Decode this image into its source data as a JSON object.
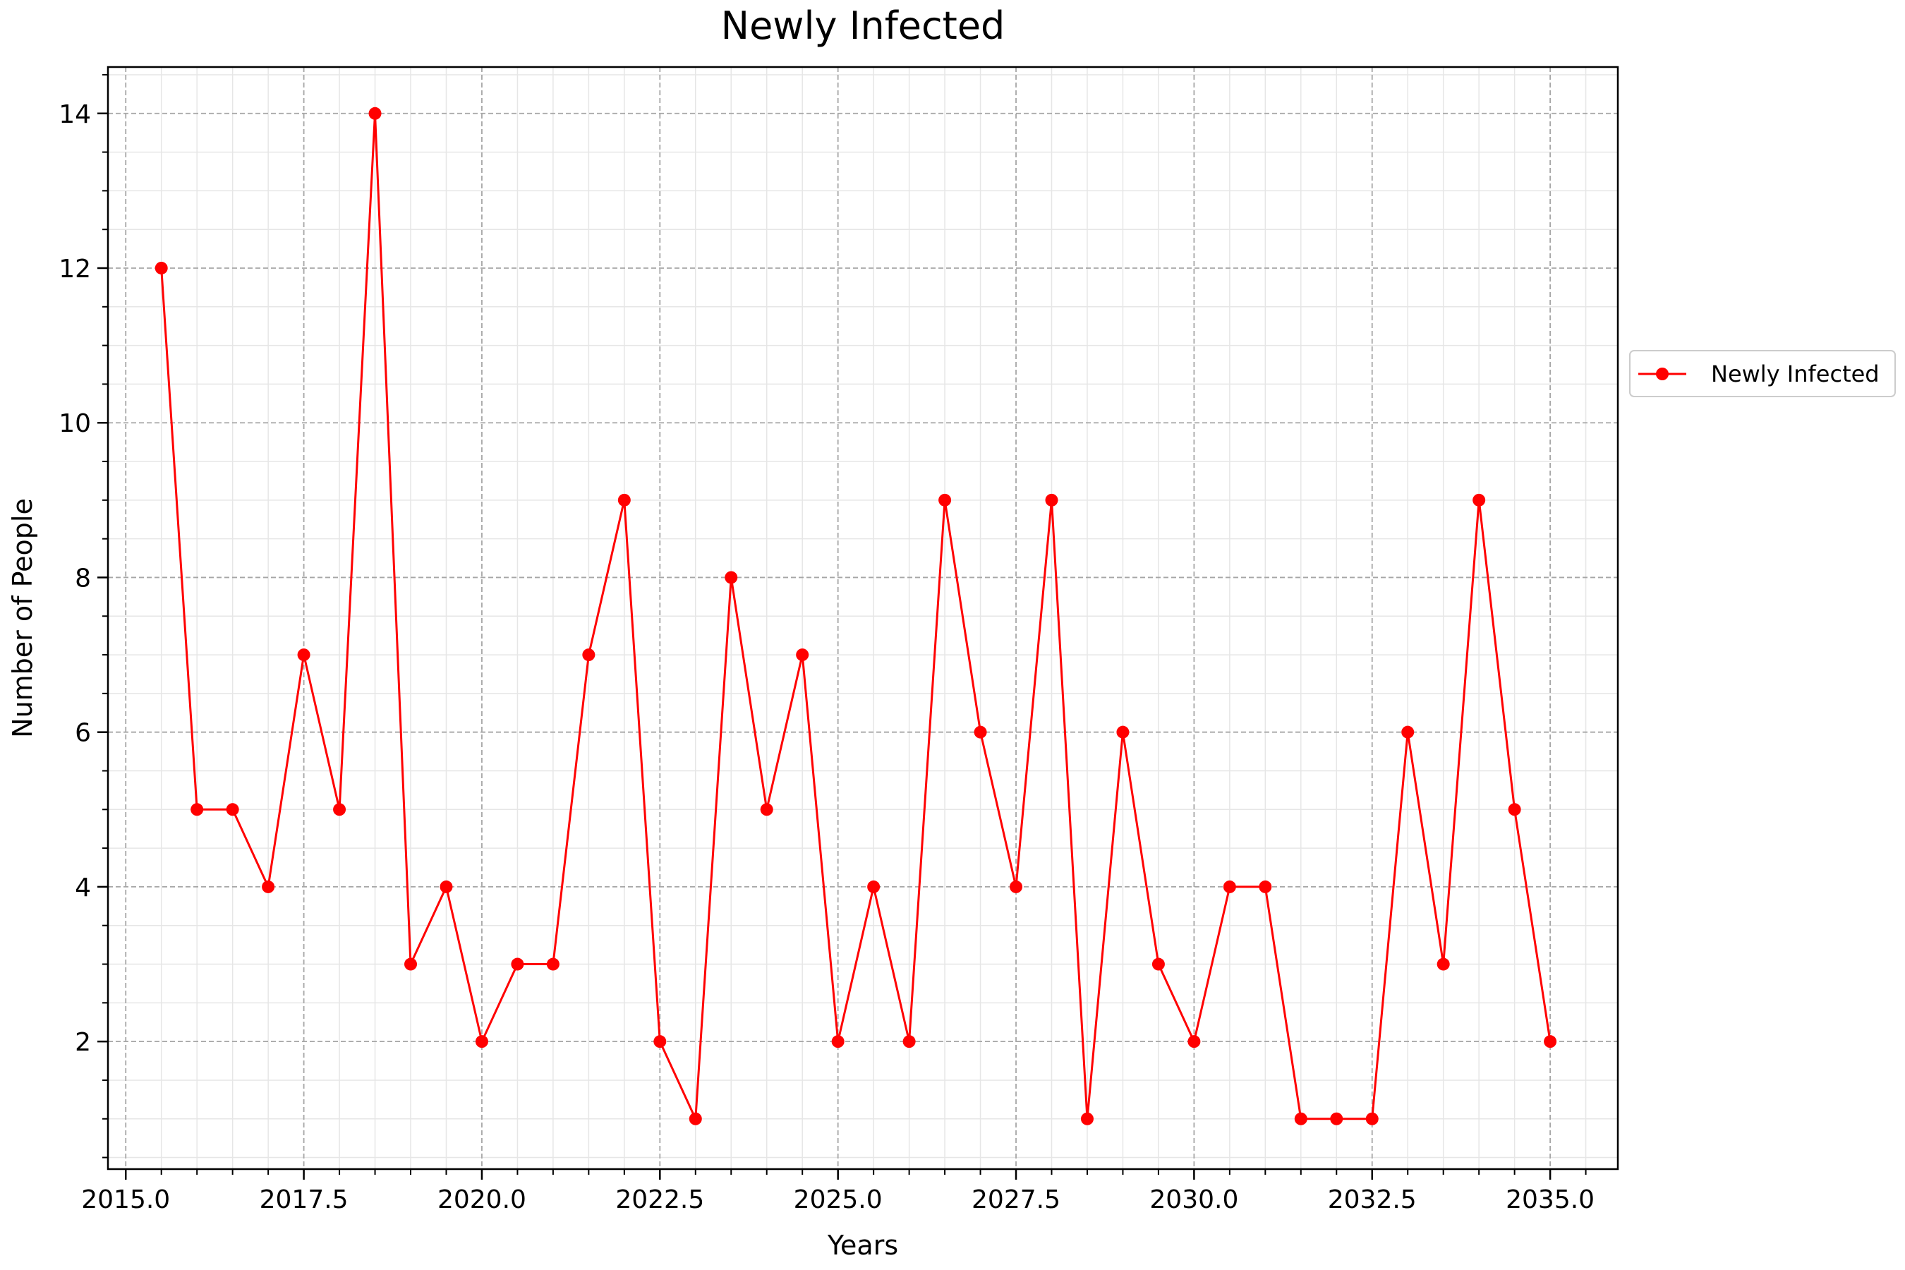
{
  "chart_data": {
    "type": "line",
    "title": "Newly Infected",
    "xlabel": "Years",
    "ylabel": "Number of People",
    "xlim": [
      2014.75,
      2035.95
    ],
    "ylim": [
      0.35,
      14.6
    ],
    "x_ticks": [
      2015.0,
      2017.5,
      2020.0,
      2022.5,
      2025.0,
      2027.5,
      2030.0,
      2032.5,
      2035.0
    ],
    "x_tick_labels": [
      "2015.0",
      "2017.5",
      "2020.0",
      "2022.5",
      "2025.0",
      "2027.5",
      "2030.0",
      "2032.5",
      "2035.0"
    ],
    "y_ticks": [
      2,
      4,
      6,
      8,
      10,
      12,
      14
    ],
    "y_tick_labels": [
      "2",
      "4",
      "6",
      "8",
      "10",
      "12",
      "14"
    ],
    "grid": true,
    "minor_grid": true,
    "legend_position": "outside-right",
    "series": [
      {
        "name": "Newly Infected",
        "color": "#ff0000",
        "marker": "circle",
        "x": [
          2015.5,
          2016.0,
          2016.5,
          2017.0,
          2017.5,
          2018.0,
          2018.5,
          2019.0,
          2019.5,
          2020.0,
          2020.5,
          2021.0,
          2021.5,
          2022.0,
          2022.5,
          2023.0,
          2023.5,
          2024.0,
          2024.5,
          2025.0,
          2025.5,
          2026.0,
          2026.5,
          2027.0,
          2027.5,
          2028.0,
          2028.5,
          2029.0,
          2029.5,
          2030.0,
          2030.5,
          2031.0,
          2031.5,
          2032.0,
          2032.5,
          2033.0,
          2033.5,
          2034.0,
          2034.5,
          2035.0
        ],
        "values": [
          12,
          5,
          5,
          4,
          7,
          5,
          14,
          3,
          4,
          2,
          3,
          3,
          7,
          9,
          2,
          1,
          8,
          5,
          7,
          2,
          4,
          2,
          9,
          6,
          4,
          9,
          1,
          6,
          3,
          2,
          4,
          4,
          1,
          1,
          1,
          6,
          3,
          9,
          5,
          2
        ]
      }
    ]
  }
}
